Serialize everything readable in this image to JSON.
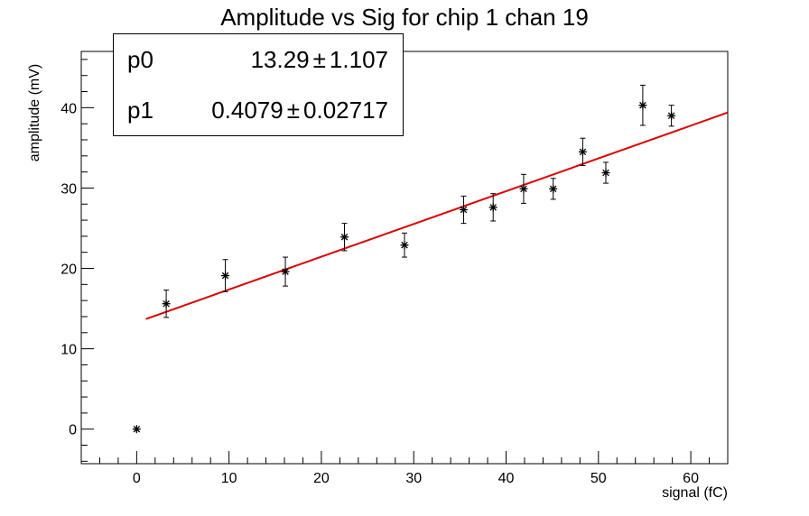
{
  "chart_data": {
    "type": "scatter",
    "title": "Amplitude vs Sig for chip 1 chan 19",
    "xlabel": "signal (fC)",
    "ylabel": "amplitude (mV)",
    "xlim": [
      -6,
      64
    ],
    "ylim": [
      -4.3,
      47
    ],
    "x_ticks": [
      0,
      10,
      20,
      30,
      40,
      50,
      60
    ],
    "y_ticks": [
      0,
      10,
      20,
      30,
      40
    ],
    "grid": false,
    "series": [
      {
        "marker": "star",
        "color": "#000000",
        "points": [
          {
            "x": 0,
            "y": 0,
            "err": 0
          },
          {
            "x": 3.2,
            "y": 15.6,
            "err": 1.7
          },
          {
            "x": 9.6,
            "y": 19.1,
            "err": 2.0
          },
          {
            "x": 16.1,
            "y": 19.6,
            "err": 1.8
          },
          {
            "x": 22.5,
            "y": 23.9,
            "err": 1.7
          },
          {
            "x": 29.0,
            "y": 22.9,
            "err": 1.5
          },
          {
            "x": 35.4,
            "y": 27.3,
            "err": 1.7
          },
          {
            "x": 38.6,
            "y": 27.6,
            "err": 1.7
          },
          {
            "x": 41.9,
            "y": 29.9,
            "err": 1.8
          },
          {
            "x": 45.1,
            "y": 29.9,
            "err": 1.3
          },
          {
            "x": 48.3,
            "y": 34.5,
            "err": 1.7
          },
          {
            "x": 50.8,
            "y": 31.9,
            "err": 1.3
          },
          {
            "x": 54.8,
            "y": 40.3,
            "err": 2.5
          },
          {
            "x": 57.9,
            "y": 39.0,
            "err": 1.3
          }
        ]
      }
    ],
    "fit": {
      "type": "line",
      "color": "#dd0000",
      "x_range": [
        1.0,
        64
      ],
      "p0": 13.29,
      "p1": 0.4079
    }
  },
  "stats": {
    "p0_name": "p0",
    "p0_value": "13.29",
    "p0_error": "1.107",
    "p1_name": "p1",
    "p1_value": "0.4079",
    "p1_error": "0.02717",
    "pm_symbol": "±"
  }
}
